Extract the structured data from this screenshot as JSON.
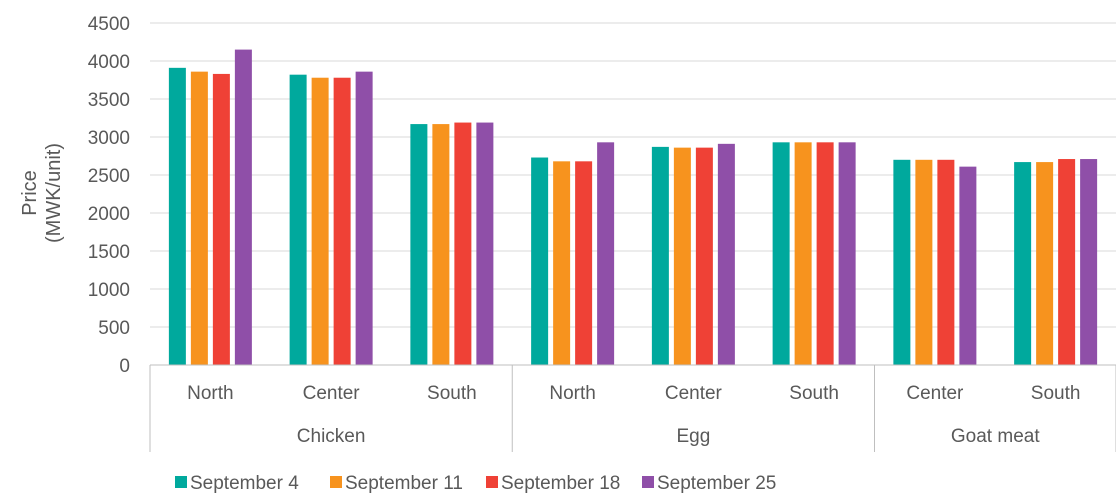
{
  "chart_data": {
    "type": "bar",
    "ylabel_lines": [
      "Price",
      "(MWK/unit)"
    ],
    "ylim": [
      0,
      4500
    ],
    "yticks": [
      0,
      500,
      1000,
      1500,
      2000,
      2500,
      3000,
      3500,
      4000,
      4500
    ],
    "grid": true,
    "legend_position": "bottom",
    "groups": [
      {
        "name": "Chicken",
        "categories": [
          "North",
          "Center",
          "South"
        ]
      },
      {
        "name": "Egg",
        "categories": [
          "North",
          "Center",
          "South"
        ]
      },
      {
        "name": "Goat meat",
        "categories": [
          "Center",
          "South"
        ]
      }
    ],
    "series": [
      {
        "name": "September 4",
        "color": "#00A99D",
        "values": [
          3910,
          3820,
          3170,
          2730,
          2870,
          2930,
          2700,
          2670
        ]
      },
      {
        "name": "September 11",
        "color": "#F7931E",
        "values": [
          3860,
          3780,
          3170,
          2680,
          2860,
          2930,
          2700,
          2670
        ]
      },
      {
        "name": "September 18",
        "color": "#EF4136",
        "values": [
          3830,
          3780,
          3190,
          2680,
          2860,
          2930,
          2700,
          2710
        ]
      },
      {
        "name": "September 25",
        "color": "#8F4FA8",
        "values": [
          4150,
          3860,
          3190,
          2930,
          2910,
          2930,
          2610,
          2710
        ]
      }
    ]
  }
}
